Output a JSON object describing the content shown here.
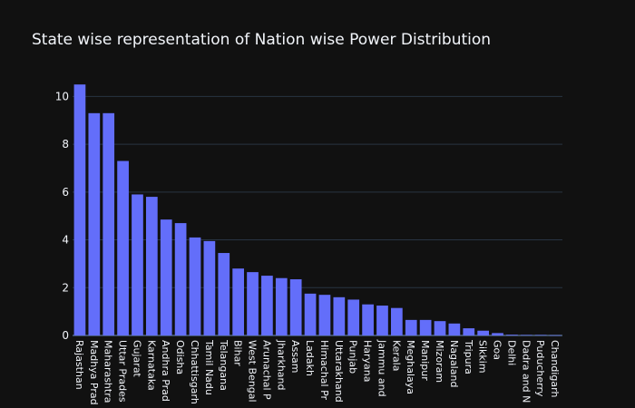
{
  "chart_data": {
    "type": "bar",
    "title": "State wise representation of Nation wise Power Distribution",
    "xlabel": "",
    "ylabel": "",
    "ylim": [
      0,
      11
    ],
    "yticks": [
      0,
      2,
      4,
      6,
      8,
      10
    ],
    "grid": true,
    "bar_color": "#636efa",
    "background": "#111111",
    "categories": [
      "Rajasthan",
      "Madhya Prad",
      "Maharashtra",
      "Uttar Prades",
      "Gujarat",
      "Karnataka",
      "Andhra Prad",
      "Odisha",
      "Chhattisgarh",
      "Tamil Nadu",
      "Telangana",
      "Bihar",
      "West Bengal",
      "Arunachal P",
      "Jharkhand",
      "Assam",
      "Ladakh",
      "Himachal Pr",
      "Uttarakhand",
      "Punjab",
      "Haryana",
      "Jammu and",
      "Kerala",
      "Meghalaya",
      "Manipur",
      "Mizoram",
      "Nagaland",
      "Tripura",
      "Sikkim",
      "Goa",
      "Delhi",
      "Dadra and N",
      "Puducherry",
      "Chandigarh"
    ],
    "values": [
      10.5,
      9.3,
      9.3,
      7.3,
      5.9,
      5.8,
      4.85,
      4.7,
      4.1,
      3.95,
      3.45,
      2.8,
      2.65,
      2.5,
      2.4,
      2.35,
      1.75,
      1.7,
      1.6,
      1.5,
      1.3,
      1.25,
      1.15,
      0.65,
      0.65,
      0.6,
      0.5,
      0.3,
      0.2,
      0.1,
      0.03,
      0.02,
      0.02,
      0.01
    ]
  }
}
